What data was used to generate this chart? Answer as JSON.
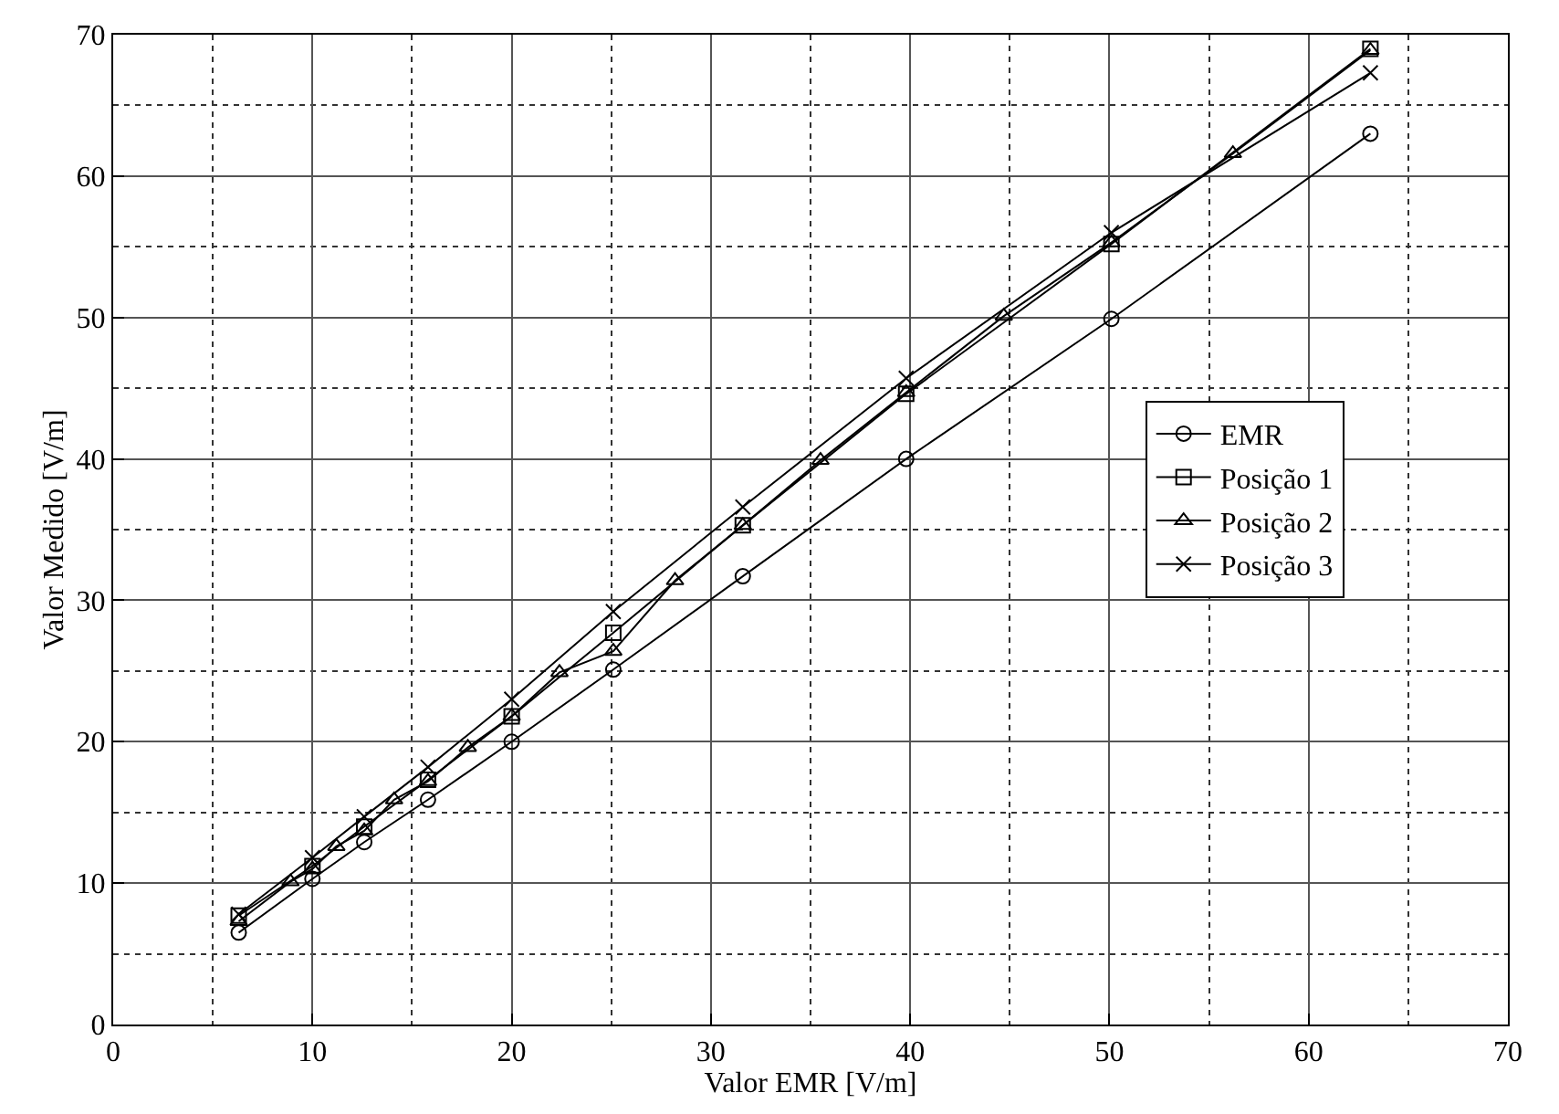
{
  "chart_data": {
    "type": "line",
    "xlabel": "Valor EMR [V/m]",
    "ylabel": "Valor Medido [V/m]",
    "xlim": [
      0,
      70
    ],
    "ylim": [
      0,
      70
    ],
    "xticks": [
      0,
      10,
      20,
      30,
      40,
      50,
      60,
      70
    ],
    "yticks": [
      0,
      10,
      20,
      30,
      40,
      50,
      60,
      70
    ],
    "grid": true,
    "legend": "right",
    "line_style": "solid",
    "series": [
      {
        "name": "EMR",
        "color": "#000000",
        "marker": "circle",
        "x": [
          6.3,
          10,
          12.6,
          15.8,
          20,
          25.1,
          31.6,
          39.8,
          50.1,
          63.1
        ],
        "values": [
          6.5,
          10.3,
          12.9,
          15.9,
          20,
          25.1,
          31.7,
          40,
          49.9,
          63
        ]
      },
      {
        "name": "Posição 1",
        "color": "#000000",
        "marker": "square",
        "x": [
          6.3,
          10,
          12.6,
          15.8,
          20,
          25.1,
          31.6,
          39.8,
          50.1,
          63.1
        ],
        "values": [
          7.7,
          11.2,
          14.0,
          17.3,
          21.8,
          27.7,
          35.3,
          44.6,
          55.2,
          69.0
        ]
      },
      {
        "name": "Posição 2",
        "color": "#000000",
        "marker": "triangle",
        "x": [
          6.3,
          8.9,
          10,
          11.2,
          12.6,
          14.1,
          15.8,
          17.8,
          20,
          22.4,
          25.1,
          28.2,
          31.6,
          35.5,
          39.8,
          44.7,
          50.1,
          56.2,
          63.1
        ],
        "values": [
          7.3,
          10.1,
          11.0,
          12.6,
          13.7,
          15.9,
          17.2,
          19.6,
          21.8,
          24.9,
          26.4,
          31.4,
          35.3,
          39.9,
          44.7,
          50.1,
          55.3,
          61.6,
          68.9
        ]
      },
      {
        "name": "Posição 3",
        "color": "#000000",
        "marker": "cross",
        "x": [
          6.3,
          10,
          12.6,
          15.8,
          20,
          25.1,
          31.6,
          39.8,
          50.1,
          63.1
        ],
        "values": [
          7.8,
          11.8,
          14.7,
          18.2,
          23.0,
          29.2,
          36.6,
          45.7,
          56.0,
          67.3
        ]
      }
    ]
  }
}
